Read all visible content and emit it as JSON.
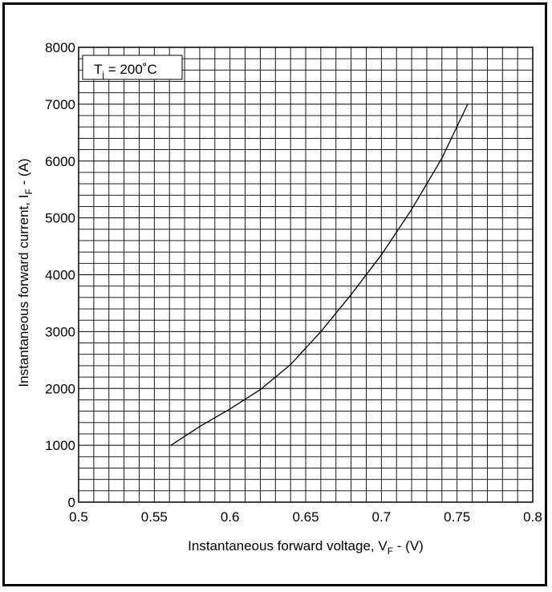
{
  "chart_data": {
    "type": "line",
    "xlabel": {
      "main": "Instantaneous forward voltage, V",
      "sub": "F",
      "suffix": " - (V)"
    },
    "ylabel": {
      "main": "Instantaneous forward current, I",
      "sub": "F",
      "suffix": " - (A)"
    },
    "annotation": {
      "main": "T",
      "sub": "j",
      "suffix": " = 200˚C"
    },
    "xlim": [
      0.5,
      0.8
    ],
    "ylim": [
      0,
      8000
    ],
    "x_ticks": [
      0.5,
      0.55,
      0.6,
      0.65,
      0.7,
      0.75,
      0.8
    ],
    "x_tick_labels": [
      "0.5",
      "0.55",
      "0.6",
      "0.65",
      "0.7",
      "0.75",
      "0.8"
    ],
    "y_ticks": [
      0,
      1000,
      2000,
      3000,
      4000,
      5000,
      6000,
      7000,
      8000
    ],
    "y_tick_labels": [
      "0",
      "1000",
      "2000",
      "3000",
      "4000",
      "5000",
      "6000",
      "7000",
      "8000"
    ],
    "grid": true,
    "grid_minor_x": 0.01,
    "grid_minor_y": 200,
    "series": [
      {
        "x": [
          0.561,
          0.58,
          0.6,
          0.62,
          0.64,
          0.66,
          0.68,
          0.7,
          0.72,
          0.74,
          0.757
        ],
        "y": [
          1000,
          1330,
          1640,
          1980,
          2420,
          3000,
          3650,
          4350,
          5150,
          6050,
          7000
        ]
      }
    ],
    "line_color": "#000000"
  }
}
